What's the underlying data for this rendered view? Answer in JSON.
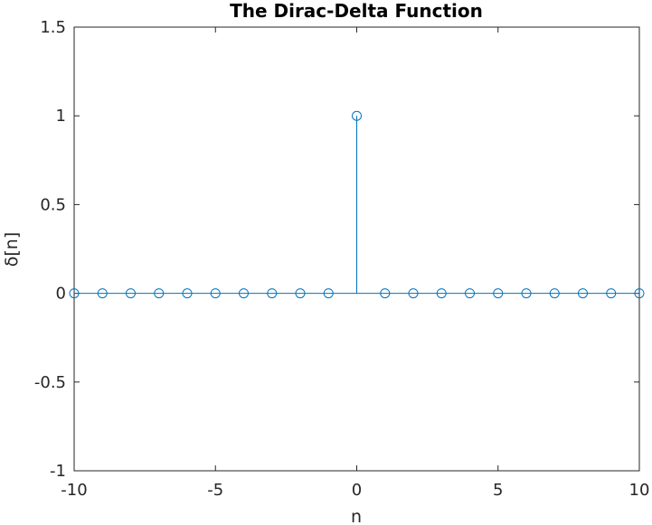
{
  "chart_data": {
    "type": "stem",
    "title": "The Dirac-Delta Function",
    "xlabel": "n",
    "ylabel": "δ[n]",
    "xlim": [
      -10,
      10
    ],
    "ylim": [
      -1,
      1.5
    ],
    "xticks": [
      "-10",
      "-5",
      "0",
      "5",
      "10"
    ],
    "yticks": [
      "-1",
      "-0.5",
      "0",
      "0.5",
      "1",
      "1.5"
    ],
    "grid": false,
    "marker": "circle",
    "x": [
      -10,
      -9,
      -8,
      -7,
      -6,
      -5,
      -4,
      -3,
      -2,
      -1,
      0,
      1,
      2,
      3,
      4,
      5,
      6,
      7,
      8,
      9,
      10
    ],
    "values": [
      0,
      0,
      0,
      0,
      0,
      0,
      0,
      0,
      0,
      0,
      1,
      0,
      0,
      0,
      0,
      0,
      0,
      0,
      0,
      0,
      0
    ],
    "color": "#0072BD"
  }
}
